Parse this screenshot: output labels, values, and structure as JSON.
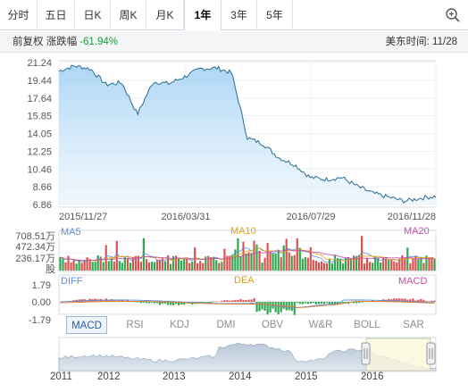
{
  "tabs": [
    {
      "label": "分时"
    },
    {
      "label": "五日"
    },
    {
      "label": "日K"
    },
    {
      "label": "周K"
    },
    {
      "label": "月K"
    },
    {
      "label": "1年"
    },
    {
      "label": "3年"
    },
    {
      "label": "5年"
    }
  ],
  "active_tab": "1年",
  "info": {
    "adjust_label": "前复权 涨跌幅",
    "change_pct": "-61.94%",
    "time_label": "美东时间: 11/28"
  },
  "price_chart": {
    "y_ticks": [
      "21.24",
      "19.44",
      "17.64",
      "15.85",
      "14.05",
      "12.25",
      "10.46",
      "8.66",
      "6.86"
    ],
    "x_ticks": [
      "2015/11/27",
      "2016/03/31",
      "2016/07/29",
      "2016/11/28"
    ]
  },
  "volume_chart": {
    "ma_labels": [
      "MA5",
      "MA10",
      "MA20"
    ],
    "y_ticks": [
      "708.51万",
      "472.34万",
      "236.17万",
      "股"
    ]
  },
  "macd_chart": {
    "labels": [
      "DIFF",
      "DEA",
      "MACD"
    ],
    "y_ticks": [
      "1.79",
      "0.00",
      "-1.79"
    ]
  },
  "indicator_tabs": [
    "MACD",
    "RSI",
    "KDJ",
    "DMI",
    "OBV",
    "W&R",
    "BOLL",
    "SAR"
  ],
  "active_indicator": "MACD",
  "navigator_years": [
    "2011",
    "2012",
    "2013",
    "2014",
    "2015",
    "2016"
  ],
  "chart_data": {
    "type": "line",
    "title": "",
    "ylim": [
      6.86,
      21.24
    ],
    "x": [
      "2015/11/27",
      "2015/12/15",
      "2016/01/05",
      "2016/01/20",
      "2016/02/05",
      "2016/02/20",
      "2016/03/05",
      "2016/03/20",
      "2016/03/31",
      "2016/04/15",
      "2016/05/01",
      "2016/05/10",
      "2016/05/25",
      "2016/06/10",
      "2016/06/25",
      "2016/07/10",
      "2016/07/29",
      "2016/08/15",
      "2016/09/01",
      "2016/09/15",
      "2016/10/01",
      "2016/10/15",
      "2016/11/01",
      "2016/11/15",
      "2016/11/28"
    ],
    "series": [
      {
        "values": [
          20.4,
          20.9,
          20.6,
          19.0,
          19.2,
          16.0,
          19.3,
          19.1,
          19.8,
          20.6,
          20.7,
          20.2,
          13.6,
          13.0,
          11.6,
          10.9,
          9.6,
          9.4,
          9.6,
          8.7,
          8.0,
          7.6,
          7.2,
          7.5,
          7.7
        ]
      }
    ]
  }
}
